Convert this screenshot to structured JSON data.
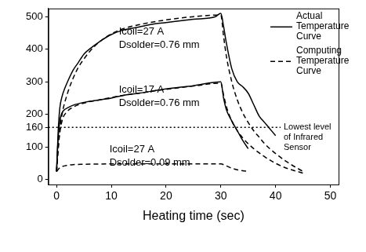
{
  "chart_data": {
    "type": "line",
    "x_label": "Heating time (sec)",
    "xlim": [
      -1.5,
      51.5
    ],
    "xticks": [
      0,
      10,
      20,
      30,
      40,
      50
    ],
    "ylim": [
      -15,
      525
    ],
    "yticks": [
      0,
      100,
      160,
      200,
      300,
      400,
      500
    ],
    "grid": false,
    "legend": "upper right",
    "series": [
      {
        "name": "Actual Temperature Curve",
        "color": "#000000",
        "line_style": "solid",
        "x": [
          0,
          0.3,
          0.6,
          1,
          1.5,
          2,
          3,
          4,
          5,
          6,
          8,
          10,
          12,
          15,
          18,
          20,
          25,
          29,
          30,
          30.5,
          31,
          32,
          33,
          34,
          35,
          36,
          37,
          38,
          39,
          40
        ],
        "values": [
          25,
          150,
          220,
          255,
          280,
          300,
          335,
          360,
          385,
          400,
          425,
          445,
          458,
          468,
          478,
          482,
          492,
          500,
          510,
          470,
          420,
          340,
          300,
          285,
          265,
          230,
          195,
          175,
          155,
          135
        ]
      },
      {
        "name": "Computing Temperature Curve",
        "color": "#000000",
        "line_style": "dashed",
        "x": [
          0,
          0.5,
          1,
          2,
          3,
          4,
          5,
          6,
          8,
          10,
          12,
          15,
          20,
          25,
          30,
          30.5,
          31,
          32,
          33,
          34,
          35,
          36,
          37,
          38,
          40,
          42,
          45
        ],
        "values": [
          25,
          140,
          200,
          265,
          310,
          345,
          370,
          392,
          425,
          447,
          462,
          475,
          490,
          500,
          505,
          440,
          380,
          300,
          245,
          205,
          175,
          150,
          130,
          110,
          80,
          55,
          25
        ]
      },
      {
        "name": "Actual Temperature Curve",
        "color": "#000000",
        "line_style": "solid",
        "x": [
          0,
          0.3,
          0.6,
          1,
          1.5,
          2,
          3,
          5,
          8,
          10,
          12,
          15,
          20,
          25,
          30,
          30.5,
          31,
          32,
          33,
          34,
          35
        ],
        "values": [
          25,
          130,
          180,
          205,
          215,
          220,
          228,
          237,
          245,
          250,
          258,
          265,
          278,
          288,
          300,
          250,
          215,
          180,
          150,
          120,
          95
        ]
      },
      {
        "name": "Computing Temperature Curve",
        "color": "#000000",
        "line_style": "dashed",
        "x": [
          0,
          0.5,
          1,
          2,
          3,
          5,
          8,
          10,
          12,
          15,
          20,
          25,
          30,
          30.5,
          31,
          32,
          33,
          34,
          35,
          36,
          38,
          40,
          42,
          45
        ],
        "values": [
          25,
          130,
          180,
          210,
          222,
          235,
          245,
          252,
          258,
          265,
          277,
          287,
          296,
          260,
          225,
          180,
          150,
          128,
          110,
          95,
          70,
          50,
          35,
          20
        ]
      },
      {
        "name": "Computing Temperature Curve",
        "color": "#000000",
        "line_style": "dashed",
        "x": [
          0,
          0.5,
          1,
          2,
          3,
          5,
          10,
          15,
          20,
          25,
          30,
          31,
          32,
          33,
          34,
          35
        ],
        "values": [
          25,
          35,
          40,
          44,
          46,
          47,
          48,
          48,
          48,
          48,
          48,
          42,
          35,
          30,
          27,
          25
        ]
      }
    ],
    "annotations": [
      {
        "lines": [
          "Icoil=27 A",
          "Dsolder=0.76 mm"
        ]
      },
      {
        "lines": [
          "Icoil=17 A",
          "Dsolder=0.76 mm"
        ]
      },
      {
        "lines": [
          "Icoil=27 A",
          "Dsolder=0.09 mm"
        ]
      }
    ],
    "reference_line": {
      "value": 160,
      "label": "Lowest level of Infrared Sensor",
      "line_style": "dotted"
    }
  }
}
